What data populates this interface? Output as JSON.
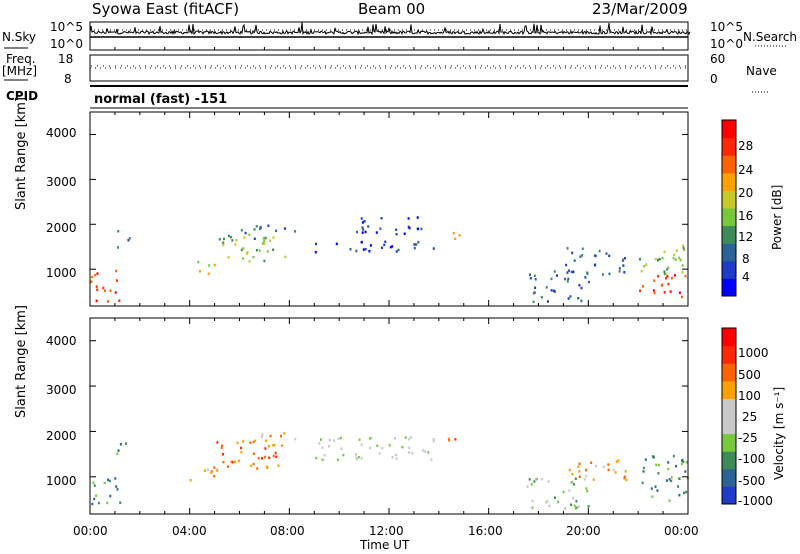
{
  "header": {
    "station": "Syowa East (fitACF)",
    "beam": "Beam 00",
    "date": "23/Mar/2009"
  },
  "top_strips": {
    "nsky_label": "N.Sky",
    "nsky_ticks": [
      "10^5",
      "10^0"
    ],
    "nsearch_label": "N.Search",
    "nsearch_ticks": [
      "10^5",
      "10^0"
    ],
    "freq_label": "Freq.",
    "freq_unit": "[MHz]",
    "freq_ticks": [
      "18",
      "8"
    ],
    "nave_label": "Nave",
    "nave_ticks": [
      "60",
      "0"
    ],
    "cpid_label": "CPID",
    "cpid_value": "normal (fast) -151"
  },
  "chart_data": [
    {
      "type": "heatmap",
      "name": "power",
      "ylabel": "Slant Range [km]",
      "yticks": [
        "4000",
        "3000",
        "2000",
        "1000"
      ],
      "ylim": [
        180,
        4500
      ],
      "xlim_hours": [
        0,
        24
      ],
      "colorbar_label": "Power [dB]",
      "colorbar_ticks": [
        "28",
        "24",
        "20",
        "16",
        "12",
        "8",
        "4"
      ],
      "colors": [
        "#0000ff",
        "#1e3cc8",
        "#2a6496",
        "#3c8c5a",
        "#78c83c",
        "#c8c828",
        "#ffa000",
        "#ff6400",
        "#ff2800",
        "#ff0000"
      ],
      "echo_regions": [
        {
          "t_start": 0.0,
          "t_end": 1.2,
          "range_min": 300,
          "range_max": 1000,
          "level": 8
        },
        {
          "t_start": 1.0,
          "t_end": 1.6,
          "range_min": 1500,
          "range_max": 1900,
          "level": 2
        },
        {
          "t_start": 4.0,
          "t_end": 5.0,
          "range_min": 900,
          "range_max": 1200,
          "level": 5
        },
        {
          "t_start": 5.0,
          "t_end": 7.8,
          "range_min": 1200,
          "range_max": 1800,
          "level": 4
        },
        {
          "t_start": 6.0,
          "t_end": 8.2,
          "range_min": 1700,
          "range_max": 2000,
          "level": 2
        },
        {
          "t_start": 9.0,
          "t_end": 14.0,
          "range_min": 1400,
          "range_max": 1650,
          "level": 1
        },
        {
          "t_start": 10.5,
          "t_end": 13.5,
          "range_min": 1800,
          "range_max": 2200,
          "level": 1
        },
        {
          "t_start": 14.0,
          "t_end": 14.8,
          "range_min": 1700,
          "range_max": 1900,
          "level": 5
        },
        {
          "t_start": 17.5,
          "t_end": 20.0,
          "range_min": 300,
          "range_max": 1000,
          "level": 2
        },
        {
          "t_start": 19.0,
          "t_end": 21.5,
          "range_min": 900,
          "range_max": 1500,
          "level": 2
        },
        {
          "t_start": 22.0,
          "t_end": 24.0,
          "range_min": 400,
          "range_max": 900,
          "level": 8
        },
        {
          "t_start": 22.0,
          "t_end": 24.0,
          "range_min": 900,
          "range_max": 1600,
          "level": 4
        }
      ]
    },
    {
      "type": "heatmap",
      "name": "velocity",
      "ylabel": "Slant Range [km]",
      "yticks": [
        "4000",
        "3000",
        "2000",
        "1000"
      ],
      "ylim": [
        180,
        4500
      ],
      "xlim_hours": [
        0,
        24
      ],
      "xticks": [
        "00:00",
        "04:00",
        "08:00",
        "12:00",
        "16:00",
        "20:00",
        "00:00"
      ],
      "xlabel": "Time UT",
      "colorbar_label": "Velocity [m s⁻¹]",
      "colorbar_ticks": [
        "1000",
        "500",
        "100",
        "25",
        "-25",
        "-100",
        "-500",
        "-1000"
      ],
      "colors": [
        "#1e3cc8",
        "#2a6496",
        "#3c8c5a",
        "#78c83c",
        "#c8c8c8",
        "#c8c8c8",
        "#ffa000",
        "#ff6400",
        "#ff2800",
        "#ff0000"
      ],
      "echo_regions": [
        {
          "t_start": 0.0,
          "t_end": 1.2,
          "range_min": 300,
          "range_max": 1000,
          "level": 2
        },
        {
          "t_start": 1.0,
          "t_end": 1.6,
          "range_min": 1500,
          "range_max": 1900,
          "level": 2
        },
        {
          "t_start": 4.0,
          "t_end": 5.2,
          "range_min": 900,
          "range_max": 1300,
          "level": 6
        },
        {
          "t_start": 5.0,
          "t_end": 7.8,
          "range_min": 1200,
          "range_max": 1800,
          "level": 7
        },
        {
          "t_start": 6.0,
          "t_end": 8.2,
          "range_min": 1700,
          "range_max": 2000,
          "level": 6
        },
        {
          "t_start": 9.0,
          "t_end": 14.0,
          "range_min": 1400,
          "range_max": 1900,
          "level": 4
        },
        {
          "t_start": 14.0,
          "t_end": 14.8,
          "range_min": 1700,
          "range_max": 1900,
          "level": 7
        },
        {
          "t_start": 17.5,
          "t_end": 20.0,
          "range_min": 300,
          "range_max": 1000,
          "level": 3
        },
        {
          "t_start": 19.0,
          "t_end": 21.5,
          "range_min": 900,
          "range_max": 1400,
          "level": 6
        },
        {
          "t_start": 22.0,
          "t_end": 24.0,
          "range_min": 500,
          "range_max": 1500,
          "level": 2
        }
      ]
    }
  ]
}
